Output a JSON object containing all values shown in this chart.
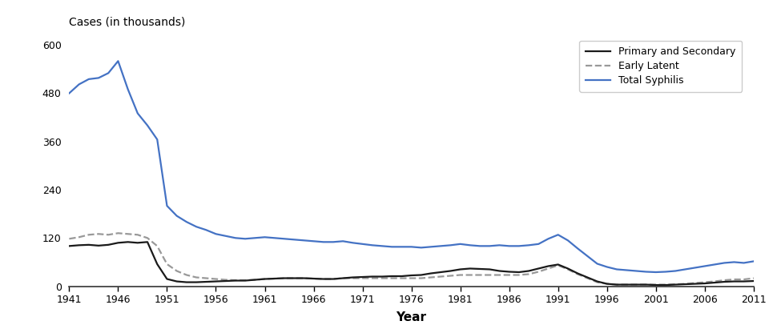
{
  "years": [
    1941,
    1942,
    1943,
    1944,
    1945,
    1946,
    1947,
    1948,
    1949,
    1950,
    1951,
    1952,
    1953,
    1954,
    1955,
    1956,
    1957,
    1958,
    1959,
    1960,
    1961,
    1962,
    1963,
    1964,
    1965,
    1966,
    1967,
    1968,
    1969,
    1970,
    1971,
    1972,
    1973,
    1974,
    1975,
    1976,
    1977,
    1978,
    1979,
    1980,
    1981,
    1982,
    1983,
    1984,
    1985,
    1986,
    1987,
    1988,
    1989,
    1990,
    1991,
    1992,
    1993,
    1994,
    1995,
    1996,
    1997,
    1998,
    1999,
    2000,
    2001,
    2002,
    2003,
    2004,
    2005,
    2006,
    2007,
    2008,
    2009,
    2010,
    2011
  ],
  "primary_secondary": [
    100,
    102,
    103,
    101,
    103,
    108,
    110,
    108,
    110,
    55,
    18,
    12,
    10,
    10,
    11,
    12,
    13,
    14,
    14,
    16,
    18,
    19,
    20,
    20,
    20,
    19,
    18,
    18,
    20,
    22,
    23,
    24,
    24,
    25,
    25,
    27,
    28,
    32,
    35,
    38,
    42,
    44,
    43,
    42,
    38,
    36,
    35,
    38,
    44,
    50,
    54,
    44,
    32,
    22,
    12,
    6,
    4,
    4,
    4,
    4,
    3,
    3,
    4,
    5,
    6,
    7,
    9,
    11,
    12,
    12,
    13
  ],
  "early_latent": [
    118,
    122,
    128,
    130,
    128,
    132,
    130,
    128,
    120,
    100,
    55,
    38,
    28,
    22,
    20,
    18,
    16,
    15,
    15,
    16,
    18,
    19,
    20,
    20,
    20,
    19,
    18,
    18,
    20,
    20,
    20,
    20,
    20,
    20,
    20,
    20,
    20,
    22,
    24,
    26,
    28,
    28,
    28,
    28,
    28,
    28,
    28,
    30,
    36,
    44,
    52,
    42,
    30,
    20,
    10,
    6,
    4,
    4,
    4,
    4,
    4,
    4,
    5,
    6,
    8,
    10,
    12,
    15,
    17,
    17,
    20
  ],
  "total_syphilis": [
    480,
    502,
    515,
    518,
    530,
    560,
    490,
    430,
    400,
    365,
    200,
    175,
    160,
    148,
    140,
    130,
    125,
    120,
    118,
    120,
    122,
    120,
    118,
    116,
    114,
    112,
    110,
    110,
    112,
    108,
    105,
    102,
    100,
    98,
    98,
    98,
    96,
    98,
    100,
    102,
    105,
    102,
    100,
    100,
    102,
    100,
    100,
    102,
    105,
    118,
    128,
    114,
    94,
    75,
    56,
    48,
    42,
    40,
    38,
    36,
    35,
    36,
    38,
    42,
    46,
    50,
    54,
    58,
    60,
    58,
    62
  ],
  "primary_secondary_color": "#1a1a1a",
  "early_latent_color": "#999999",
  "total_syphilis_color": "#4472C4",
  "ylabel": "Cases (in thousands)",
  "xlabel": "Year",
  "ylim": [
    0,
    630
  ],
  "yticks": [
    0,
    120,
    240,
    360,
    480,
    600
  ],
  "xtick_years": [
    1941,
    1946,
    1951,
    1956,
    1961,
    1966,
    1971,
    1976,
    1981,
    1986,
    1991,
    1996,
    2001,
    2006,
    2011
  ],
  "legend_labels": [
    "Primary and Secondary",
    "Early Latent",
    "Total Syphilis"
  ],
  "background_color": "#ffffff",
  "linewidth": 1.6
}
